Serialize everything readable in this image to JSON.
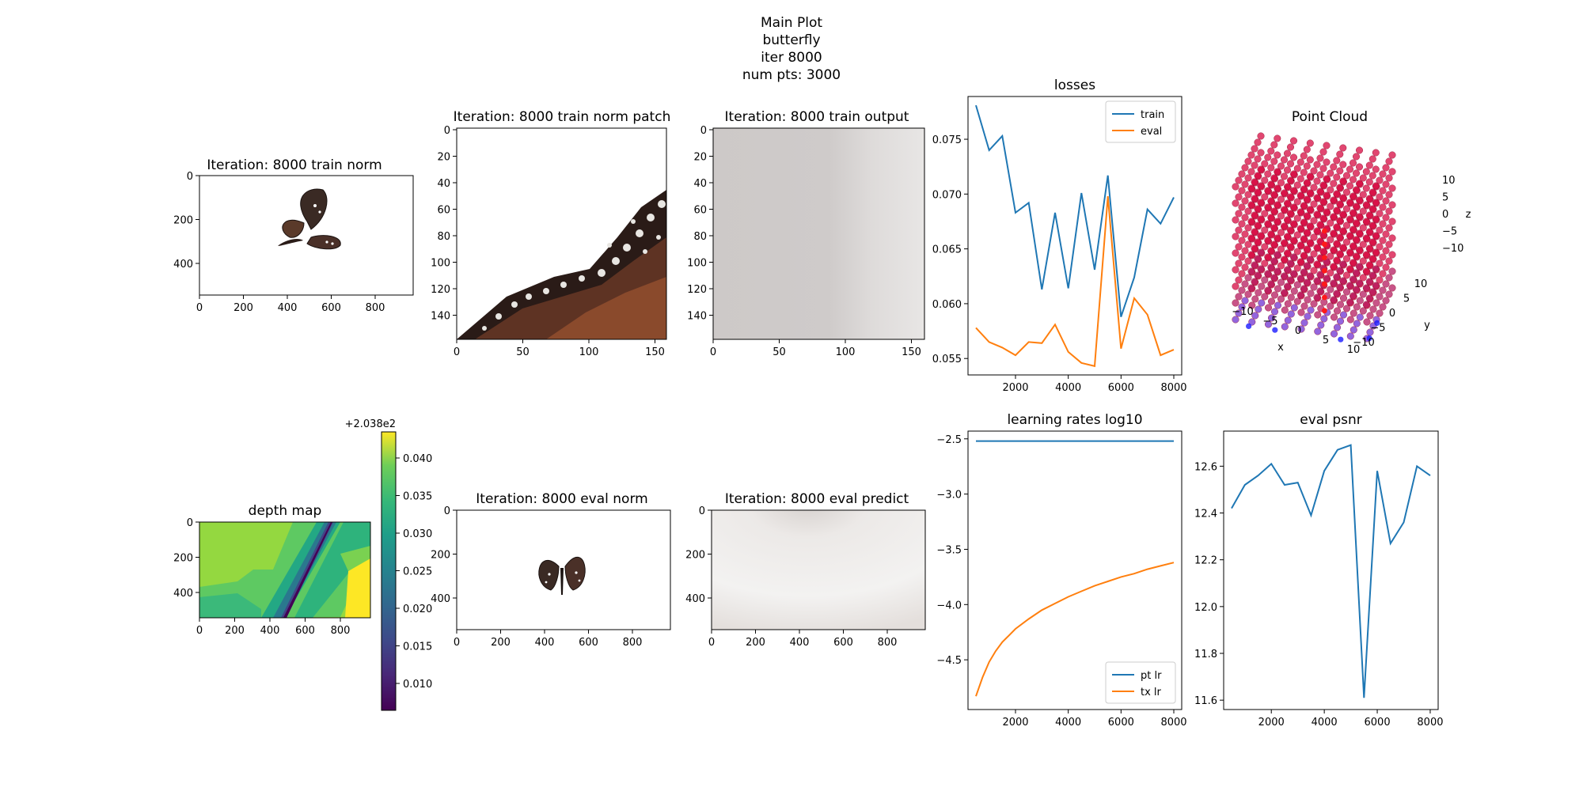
{
  "suptitle": {
    "line1": "Main Plot",
    "line2": "butterfly",
    "line3": "iter 8000",
    "line4": "num pts: 3000"
  },
  "colors": {
    "series_blue": "#1f77b4",
    "series_orange": "#ff7f0e",
    "viridis_low": "#440154",
    "viridis_high": "#fde725",
    "point_cloud_red": "#d6003a",
    "point_cloud_blue": "#1a1aff"
  },
  "panels": {
    "train_norm": {
      "title": "Iteration: 8000 train norm",
      "xticks": [
        "0",
        "200",
        "400",
        "600",
        "800"
      ],
      "yticks": [
        "0",
        "200",
        "400"
      ],
      "image": "butterfly-icon"
    },
    "train_norm_patch": {
      "title": "Iteration: 8000 train norm patch",
      "xticks": [
        "0",
        "50",
        "100",
        "150"
      ],
      "yticks": [
        "0",
        "20",
        "40",
        "60",
        "80",
        "100",
        "120",
        "140"
      ],
      "image": "butterfly-wing-closeup"
    },
    "train_output": {
      "title": "Iteration: 8000 train output",
      "xticks": [
        "0",
        "50",
        "100",
        "150"
      ],
      "yticks": [
        "0",
        "20",
        "40",
        "60",
        "80",
        "100",
        "120",
        "140"
      ],
      "image": "blurry-gray-render"
    },
    "point_cloud": {
      "title": "Point Cloud",
      "xlabel": "x",
      "ylabel": "y",
      "zlabel": "z",
      "xticks": [
        "−10",
        "−5",
        "0",
        "5",
        "10"
      ],
      "yticks": [
        "−10",
        "−5",
        "0",
        "5",
        "10"
      ],
      "zticks": [
        "10",
        "5",
        "0",
        "−5",
        "−10"
      ],
      "num_points": 3000,
      "range": [
        -10,
        10
      ]
    },
    "depth_map": {
      "title": "depth map",
      "xticks": [
        "0",
        "200",
        "400",
        "600",
        "800"
      ],
      "yticks": [
        "0",
        "200",
        "400"
      ],
      "colorbar_offset": "+2.038e2",
      "colorbar_ticks": [
        "0.040",
        "0.035",
        "0.030",
        "0.025",
        "0.020",
        "0.015",
        "0.010"
      ],
      "colormap": "viridis"
    },
    "eval_norm": {
      "title": "Iteration: 8000 eval norm",
      "xticks": [
        "0",
        "200",
        "400",
        "600",
        "800"
      ],
      "yticks": [
        "0",
        "200",
        "400"
      ],
      "image": "butterfly-icon"
    },
    "eval_predict": {
      "title": "Iteration: 8000 eval predict",
      "xticks": [
        "0",
        "200",
        "400",
        "600",
        "800"
      ],
      "yticks": [
        "0",
        "200",
        "400"
      ],
      "image": "blurry-gray-render"
    }
  },
  "chart_data": [
    {
      "type": "line",
      "title": "losses",
      "legend_placement": "upper right",
      "xlim": [
        200,
        8300
      ],
      "ylim": [
        0.0535,
        0.0789
      ],
      "xticks": [
        2000,
        4000,
        6000,
        8000
      ],
      "yticks": [
        0.055,
        0.06,
        0.065,
        0.07,
        0.075
      ],
      "x": [
        500,
        1000,
        1500,
        2000,
        2500,
        3000,
        3500,
        4000,
        4500,
        5000,
        5500,
        6000,
        6500,
        7000,
        7500,
        8000
      ],
      "series": [
        {
          "name": "train",
          "color": "#1f77b4",
          "values": [
            0.0781,
            0.074,
            0.0753,
            0.0683,
            0.0692,
            0.0613,
            0.0683,
            0.0614,
            0.0701,
            0.0631,
            0.0717,
            0.0588,
            0.0624,
            0.0686,
            0.0673,
            0.0697
          ]
        },
        {
          "name": "eval",
          "color": "#ff7f0e",
          "values": [
            0.0578,
            0.0565,
            0.056,
            0.0553,
            0.0565,
            0.0564,
            0.0581,
            0.0556,
            0.0546,
            0.0543,
            0.0698,
            0.0559,
            0.0605,
            0.059,
            0.0553,
            0.0558
          ]
        }
      ]
    },
    {
      "type": "line",
      "title": "learning rates log10",
      "legend_placement": "lower right",
      "xlim": [
        200,
        8300
      ],
      "ylim": [
        -4.95,
        -2.43
      ],
      "xticks": [
        2000,
        4000,
        6000,
        8000
      ],
      "yticks": [
        -2.5,
        -3.0,
        -3.5,
        -4.0,
        -4.5
      ],
      "x": [
        500,
        750,
        1000,
        1250,
        1500,
        1750,
        2000,
        2500,
        3000,
        3500,
        4000,
        4500,
        5000,
        5500,
        6000,
        6500,
        7000,
        7500,
        8000
      ],
      "series": [
        {
          "name": "pt lr",
          "color": "#1f77b4",
          "values": [
            -2.52,
            -2.52,
            -2.52,
            -2.52,
            -2.52,
            -2.52,
            -2.52,
            -2.52,
            -2.52,
            -2.52,
            -2.52,
            -2.52,
            -2.52,
            -2.52,
            -2.52,
            -2.52,
            -2.52,
            -2.52,
            -2.52
          ]
        },
        {
          "name": "tx lr",
          "color": "#ff7f0e",
          "values": [
            -4.83,
            -4.66,
            -4.52,
            -4.42,
            -4.34,
            -4.28,
            -4.22,
            -4.13,
            -4.05,
            -3.99,
            -3.93,
            -3.88,
            -3.83,
            -3.79,
            -3.75,
            -3.72,
            -3.68,
            -3.65,
            -3.62
          ]
        }
      ]
    },
    {
      "type": "line",
      "title": "eval psnr",
      "xlim": [
        200,
        8300
      ],
      "ylim": [
        11.56,
        12.75
      ],
      "xticks": [
        2000,
        4000,
        6000,
        8000
      ],
      "yticks": [
        11.6,
        11.8,
        12.0,
        12.2,
        12.4,
        12.6
      ],
      "x": [
        500,
        1000,
        1500,
        2000,
        2500,
        3000,
        3500,
        4000,
        4500,
        5000,
        5500,
        6000,
        6500,
        7000,
        7500,
        8000
      ],
      "series": [
        {
          "color": "#1f77b4",
          "values": [
            12.42,
            12.52,
            12.56,
            12.61,
            12.52,
            12.53,
            12.39,
            12.58,
            12.67,
            12.69,
            11.61,
            12.58,
            12.27,
            12.36,
            12.6,
            12.56
          ]
        }
      ]
    }
  ]
}
